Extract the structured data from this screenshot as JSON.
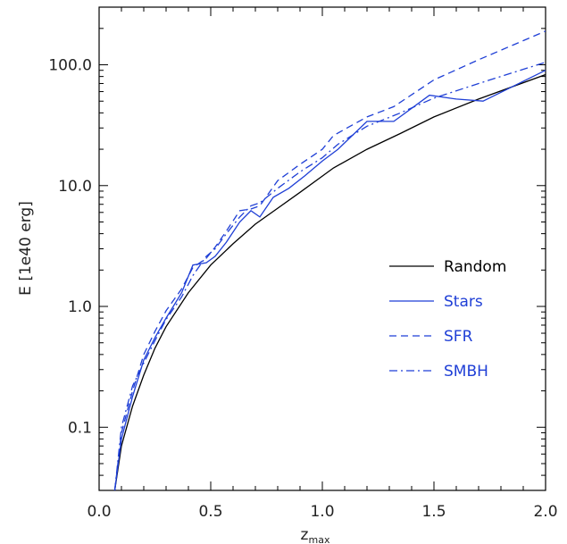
{
  "chart_data": {
    "type": "line",
    "title": "",
    "xlabel": "z",
    "xlabel_sub": "max",
    "ylabel": "E [1e40 erg]",
    "xlim": [
      0.0,
      2.0
    ],
    "ylim": [
      0.03,
      300
    ],
    "yscale": "log",
    "xticks": [
      0.0,
      0.5,
      1.0,
      1.5,
      2.0
    ],
    "xtick_labels": [
      "0.0",
      "0.5",
      "1.0",
      "1.5",
      "2.0"
    ],
    "yticks": [
      0.1,
      1.0,
      10.0,
      100.0
    ],
    "ytick_labels": [
      "0.1",
      "1.0",
      "10.0",
      "100.0"
    ],
    "grid": false,
    "legend_position": "lower-right",
    "series": [
      {
        "name": "Random",
        "color": "#000000",
        "dash": "solid",
        "x": [
          0.07,
          0.1,
          0.15,
          0.2,
          0.25,
          0.3,
          0.4,
          0.5,
          0.6,
          0.7,
          0.8,
          0.9,
          1.0,
          1.05,
          1.2,
          1.35,
          1.5,
          1.7,
          2.0
        ],
        "y": [
          0.03,
          0.07,
          0.15,
          0.27,
          0.45,
          0.68,
          1.3,
          2.2,
          3.3,
          4.8,
          6.5,
          8.8,
          12,
          14,
          20,
          27,
          37,
          52,
          83
        ]
      },
      {
        "name": "Stars",
        "color": "#1f3fd6",
        "dash": "solid",
        "x": [
          0.07,
          0.1,
          0.15,
          0.2,
          0.25,
          0.3,
          0.37,
          0.42,
          0.48,
          0.52,
          0.57,
          0.63,
          0.68,
          0.72,
          0.78,
          0.85,
          0.92,
          1.0,
          1.07,
          1.2,
          1.32,
          1.48,
          1.6,
          1.72,
          2.0
        ],
        "y": [
          0.03,
          0.08,
          0.18,
          0.36,
          0.55,
          0.8,
          1.3,
          2.2,
          2.3,
          2.6,
          3.4,
          5.0,
          6.2,
          5.5,
          8.0,
          9.5,
          12,
          16,
          20,
          34,
          34,
          56,
          52,
          50,
          90
        ]
      },
      {
        "name": "SFR",
        "color": "#1f3fd6",
        "dash": "dashed",
        "x": [
          0.07,
          0.1,
          0.15,
          0.2,
          0.25,
          0.3,
          0.37,
          0.42,
          0.48,
          0.52,
          0.57,
          0.63,
          0.68,
          0.72,
          0.8,
          0.9,
          1.0,
          1.05,
          1.2,
          1.32,
          1.5,
          1.7,
          2.0
        ],
        "y": [
          0.03,
          0.09,
          0.2,
          0.4,
          0.62,
          0.92,
          1.4,
          2.1,
          2.5,
          3.1,
          4.2,
          6.2,
          6.4,
          6.8,
          11,
          15,
          20,
          26,
          37,
          45,
          75,
          110,
          190
        ]
      },
      {
        "name": "SMBH",
        "color": "#1f3fd6",
        "dash": "dashdot",
        "x": [
          0.07,
          0.1,
          0.15,
          0.2,
          0.25,
          0.3,
          0.37,
          0.42,
          0.48,
          0.52,
          0.57,
          0.63,
          0.68,
          0.72,
          0.8,
          0.9,
          1.0,
          1.07,
          1.2,
          1.35,
          1.5,
          1.7,
          2.0
        ],
        "y": [
          0.03,
          0.1,
          0.22,
          0.34,
          0.52,
          0.78,
          1.2,
          1.8,
          2.6,
          3.0,
          4.0,
          5.5,
          6.8,
          7.2,
          9.5,
          13,
          17,
          22,
          31,
          40,
          53,
          70,
          105
        ]
      }
    ]
  }
}
